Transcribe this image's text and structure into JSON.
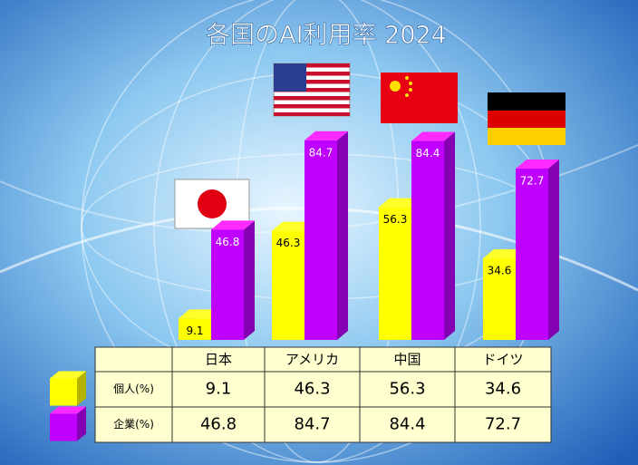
{
  "chart_data": {
    "type": "bar3d",
    "title": "各国のAI利用率 2024",
    "categories": [
      "日本",
      "アメリカ",
      "中国",
      "ドイツ"
    ],
    "series": [
      {
        "name": "個人(%)",
        "color": "#ffff00",
        "values": [
          9.1,
          46.3,
          56.3,
          34.6
        ]
      },
      {
        "name": "企業(%)",
        "color": "#bf00ff",
        "values": [
          46.8,
          84.7,
          84.4,
          72.7
        ]
      }
    ]
  }
}
